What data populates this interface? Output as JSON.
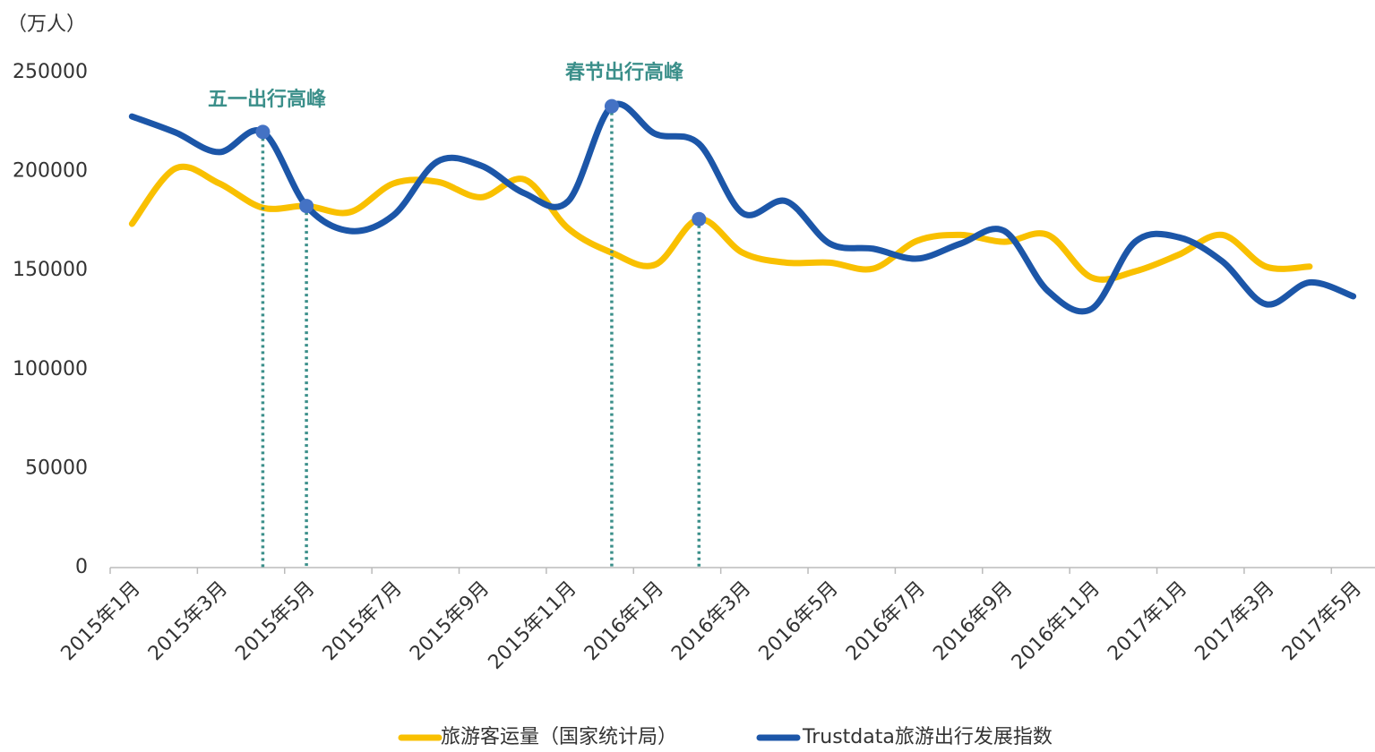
{
  "chart_data": {
    "type": "line",
    "y_label": "（万人）",
    "categories": [
      "2015年1月",
      null,
      "2015年3月",
      null,
      "2015年5月",
      null,
      "2015年7月",
      null,
      "2015年9月",
      null,
      "2015年11月",
      null,
      "2016年1月",
      null,
      "2016年3月",
      null,
      "2016年5月",
      null,
      "2016年7月",
      null,
      "2016年9月",
      null,
      "2016年11月",
      null,
      "2017年1月",
      null,
      "2017年3月",
      null,
      "2017年5月"
    ],
    "series": [
      {
        "name": "旅游客运量（国家统计局）",
        "color": "#f9c000",
        "values": [
          173600,
          201600,
          194000,
          181700,
          182600,
          179500,
          194000,
          194800,
          187000,
          196000,
          171300,
          159000,
          153000,
          176000,
          159000,
          154000,
          154000,
          151000,
          165000,
          168000,
          164500,
          168000,
          146500,
          149600,
          158000,
          168000,
          152000,
          152000,
          null
        ]
      },
      {
        "name": "Trustdata旅游出行发展指数",
        "color": "#1c56a8",
        "values": [
          227800,
          219700,
          209800,
          220000,
          182600,
          170000,
          178000,
          205000,
          203000,
          189000,
          185000,
          233000,
          219000,
          214000,
          179000,
          185000,
          163600,
          161000,
          156000,
          163600,
          170000,
          139700,
          130600,
          164500,
          166800,
          154600,
          133000,
          144000,
          137000
        ]
      }
    ],
    "annotations": [
      "五一出行高峰",
      "春节出行高峰"
    ],
    "ylim": [
      0,
      250000
    ],
    "yticks": [
      0,
      50000,
      100000,
      150000,
      200000,
      250000
    ]
  }
}
